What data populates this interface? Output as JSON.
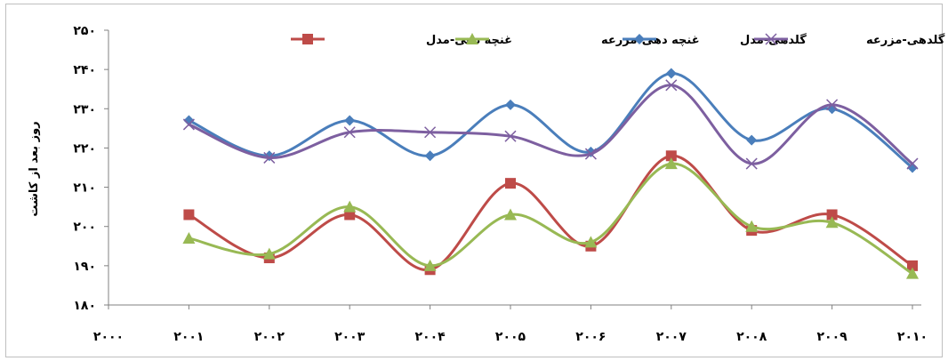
{
  "chart_data": {
    "type": "line",
    "title": "",
    "xlabel": "",
    "ylabel": "روز بعد از کاشت",
    "x": [
      2000,
      2001,
      2002,
      2003,
      2004,
      2005,
      2006,
      2007,
      2008,
      2009,
      2010
    ],
    "x_tick_labels": [
      "۲۰۰۰",
      "۲۰۰۱",
      "۲۰۰۲",
      "۲۰۰۳",
      "۲۰۰۴",
      "۲۰۰۵",
      "۲۰۰۶",
      "۲۰۰۷",
      "۲۰۰۸",
      "۲۰۰۹",
      "۲۰۱۰"
    ],
    "y_tick_values": [
      180,
      190,
      200,
      210,
      220,
      230,
      240,
      250
    ],
    "y_tick_labels": [
      "۱۸۰",
      "۱۹۰",
      "۲۰۰",
      "۲۱۰",
      "۲۲۰",
      "۲۳۰",
      "۲۴۰",
      "۲۵۰"
    ],
    "ylim": [
      180,
      250
    ],
    "xlim": [
      2000,
      2010
    ],
    "grid": false,
    "legend_position": "top",
    "series": [
      {
        "name": "غنچه دهی-مدل",
        "color": "#be4b48",
        "marker": "square",
        "x": [
          2001,
          2002,
          2003,
          2004,
          2005,
          2006,
          2007,
          2008,
          2009,
          2010
        ],
        "values": [
          203,
          192,
          203,
          189,
          211,
          195,
          218,
          199,
          203,
          190
        ]
      },
      {
        "name": "غنچه دهی-مزرعه",
        "color": "#98b954",
        "marker": "triangle",
        "x": [
          2001,
          2002,
          2003,
          2004,
          2005,
          2006,
          2007,
          2008,
          2009,
          2010
        ],
        "values": [
          197,
          193,
          205,
          190,
          203,
          196,
          216,
          200,
          201,
          188
        ]
      },
      {
        "name": "گلدهی-مدل",
        "color": "#4a7ebb",
        "marker": "diamond",
        "x": [
          2001,
          2002,
          2003,
          2004,
          2005,
          2006,
          2007,
          2008,
          2009,
          2010
        ],
        "values": [
          227,
          218,
          227,
          218,
          231,
          219,
          239,
          222,
          230,
          215
        ]
      },
      {
        "name": "گلدهی-مزرعه",
        "color": "#7d5fa0",
        "marker": "x",
        "x": [
          2001,
          2002,
          2003,
          2004,
          2005,
          2006,
          2007,
          2008,
          2009,
          2010
        ],
        "values": [
          226,
          217.5,
          224,
          224,
          223,
          218.5,
          236,
          216,
          231,
          216
        ]
      }
    ]
  }
}
